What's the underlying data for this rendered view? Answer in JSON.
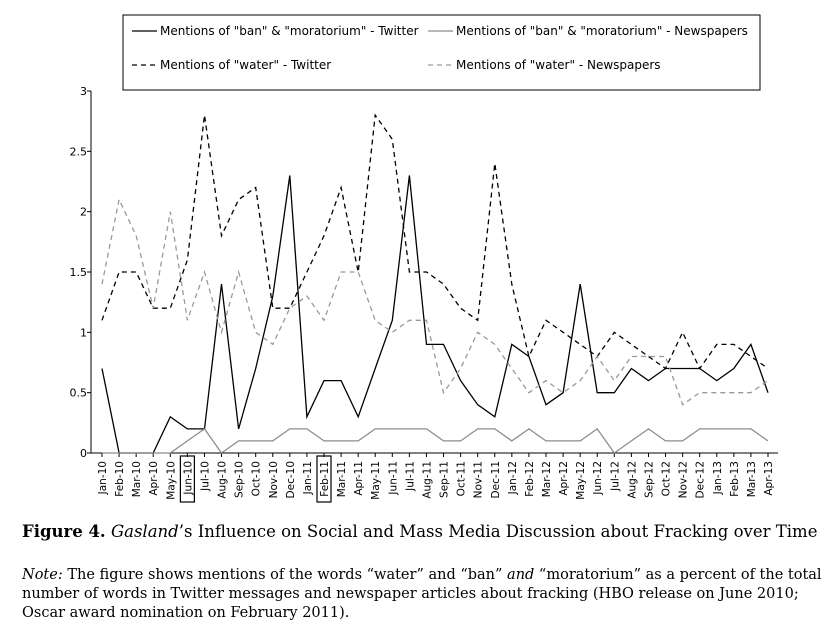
{
  "chart_data": {
    "type": "line",
    "title": "",
    "xlabel": "",
    "ylabel": "",
    "ylim": [
      0,
      3
    ],
    "y_ticks": [
      "0",
      "0.5",
      "1",
      "1.5",
      "2",
      "2.5",
      "3"
    ],
    "grid": false,
    "legend_position": "top",
    "categories": [
      "Jan-10",
      "Feb-10",
      "Mar-10",
      "Apr-10",
      "May-10",
      "Jun-10",
      "Jul-10",
      "Aug-10",
      "Sep-10",
      "Oct-10",
      "Nov-10",
      "Dec-10",
      "Jan-11",
      "Feb-11",
      "Mar-11",
      "Apr-11",
      "May-11",
      "Jun-11",
      "Jul-11",
      "Aug-11",
      "Sep-11",
      "Oct-11",
      "Nov-11",
      "Dec-11",
      "Jan-12",
      "Feb-12",
      "Mar-12",
      "Apr-12",
      "May-12",
      "Jun-12",
      "Jul-12",
      "Aug-12",
      "Sep-12",
      "Oct-12",
      "Nov-12",
      "Dec-12",
      "Jan-13",
      "Feb-13",
      "Mar-13",
      "Apr-13"
    ],
    "boxed_categories": [
      "Jun-10",
      "Feb-11"
    ],
    "series": [
      {
        "name": "Mentions of \"ban\" & \"moratorium\" - Twitter",
        "color": "#000000",
        "dash": "solid",
        "values": [
          0.7,
          0,
          0,
          0,
          0.3,
          0.2,
          0.2,
          1.4,
          0.2,
          0.7,
          1.3,
          2.3,
          0.3,
          0.6,
          0.6,
          0.3,
          0.7,
          1.1,
          2.3,
          0.9,
          0.9,
          0.6,
          0.4,
          0.3,
          0.9,
          0.8,
          0.4,
          0.5,
          1.4,
          0.5,
          0.5,
          0.7,
          0.6,
          0.7,
          0.7,
          0.7,
          0.6,
          0.7,
          0.9,
          0.5
        ]
      },
      {
        "name": "Mentions of \"ban\" & \"moratorium\" - Newspapers",
        "color": "#8c8c8c",
        "dash": "solid",
        "values": [
          0,
          0,
          0,
          0,
          0,
          0.1,
          0.2,
          0,
          0.1,
          0.1,
          0.1,
          0.2,
          0.2,
          0.1,
          0.1,
          0.1,
          0.2,
          0.2,
          0.2,
          0.2,
          0.1,
          0.1,
          0.2,
          0.2,
          0.1,
          0.2,
          0.1,
          0.1,
          0.1,
          0.2,
          0,
          0.1,
          0.2,
          0.1,
          0.1,
          0.2,
          0.2,
          0.2,
          0.2,
          0.1
        ]
      },
      {
        "name": "Mentions of \"water\" - Twitter",
        "color": "#000000",
        "dash": "dashed",
        "values": [
          1.1,
          1.5,
          1.5,
          1.2,
          1.2,
          1.6,
          2.8,
          1.8,
          2.1,
          2.2,
          1.2,
          1.2,
          1.5,
          1.8,
          2.2,
          1.5,
          2.8,
          2.6,
          1.5,
          1.5,
          1.4,
          1.2,
          1.1,
          2.4,
          1.4,
          0.8,
          1.1,
          1.0,
          0.9,
          0.8,
          1.0,
          0.9,
          0.8,
          0.7,
          1.0,
          0.7,
          0.9,
          0.9,
          0.8,
          0.7
        ]
      },
      {
        "name": "Mentions of \"water\" - Newspapers",
        "color": "#999999",
        "dash": "dashed",
        "values": [
          1.4,
          2.1,
          1.8,
          1.2,
          2.0,
          1.1,
          1.5,
          1.0,
          1.5,
          1.0,
          0.9,
          1.2,
          1.3,
          1.1,
          1.5,
          1.5,
          1.1,
          1.0,
          1.1,
          1.1,
          0.5,
          0.7,
          1.0,
          0.9,
          0.7,
          0.5,
          0.6,
          0.5,
          0.6,
          0.8,
          0.6,
          0.8,
          0.8,
          0.8,
          0.4,
          0.5,
          0.5,
          0.5,
          0.5,
          0.6
        ]
      }
    ]
  },
  "caption": {
    "label": "Figure 4.",
    "title_italic": "Gasland",
    "title_rest": "’s Influence on Social and Mass Media Discussion about Fracking over Time",
    "note_label": "Note:",
    "note_part1": " The figure shows mentions of the words “water” and “ban” ",
    "note_italic": "and",
    "note_part2": " “moratorium” as a percent of the total number of words in Twitter messages and newspaper articles about fracking (HBO release on June 2010; Oscar award nomination on February 2011)."
  }
}
